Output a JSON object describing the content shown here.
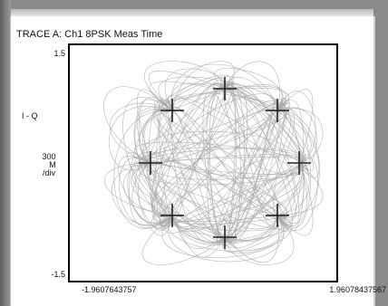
{
  "trace_title": "TRACE A: Ch1 8PSK Meas Time",
  "chart_data": {
    "type": "scatter",
    "title": "TRACE A: Ch1 8PSK Meas Time",
    "ylabel": "I - Q",
    "y_scale_text": [
      "300",
      "M",
      "/div"
    ],
    "ylim": [
      -1.5,
      1.5
    ],
    "xlim": [
      -1.9607643757,
      1.96078437567
    ],
    "y_tick_labels": [
      "1.5",
      "-1.5"
    ],
    "x_tick_labels": [
      "-1.9607643757",
      "1.96078437567"
    ],
    "constellation_points": [
      {
        "x": 1.0,
        "y": 0.0
      },
      {
        "x": 0.7071,
        "y": 0.7071
      },
      {
        "x": 0.0,
        "y": 1.0
      },
      {
        "x": -0.7071,
        "y": 0.7071
      },
      {
        "x": -1.0,
        "y": 0.0
      },
      {
        "x": -0.7071,
        "y": -0.7071
      },
      {
        "x": 0.0,
        "y": -1.0
      },
      {
        "x": 0.7071,
        "y": -0.7071
      }
    ],
    "grid": false,
    "colors": {
      "trajectory": "#a8a8a8",
      "marker": "#222222",
      "frame": "#000000"
    }
  }
}
